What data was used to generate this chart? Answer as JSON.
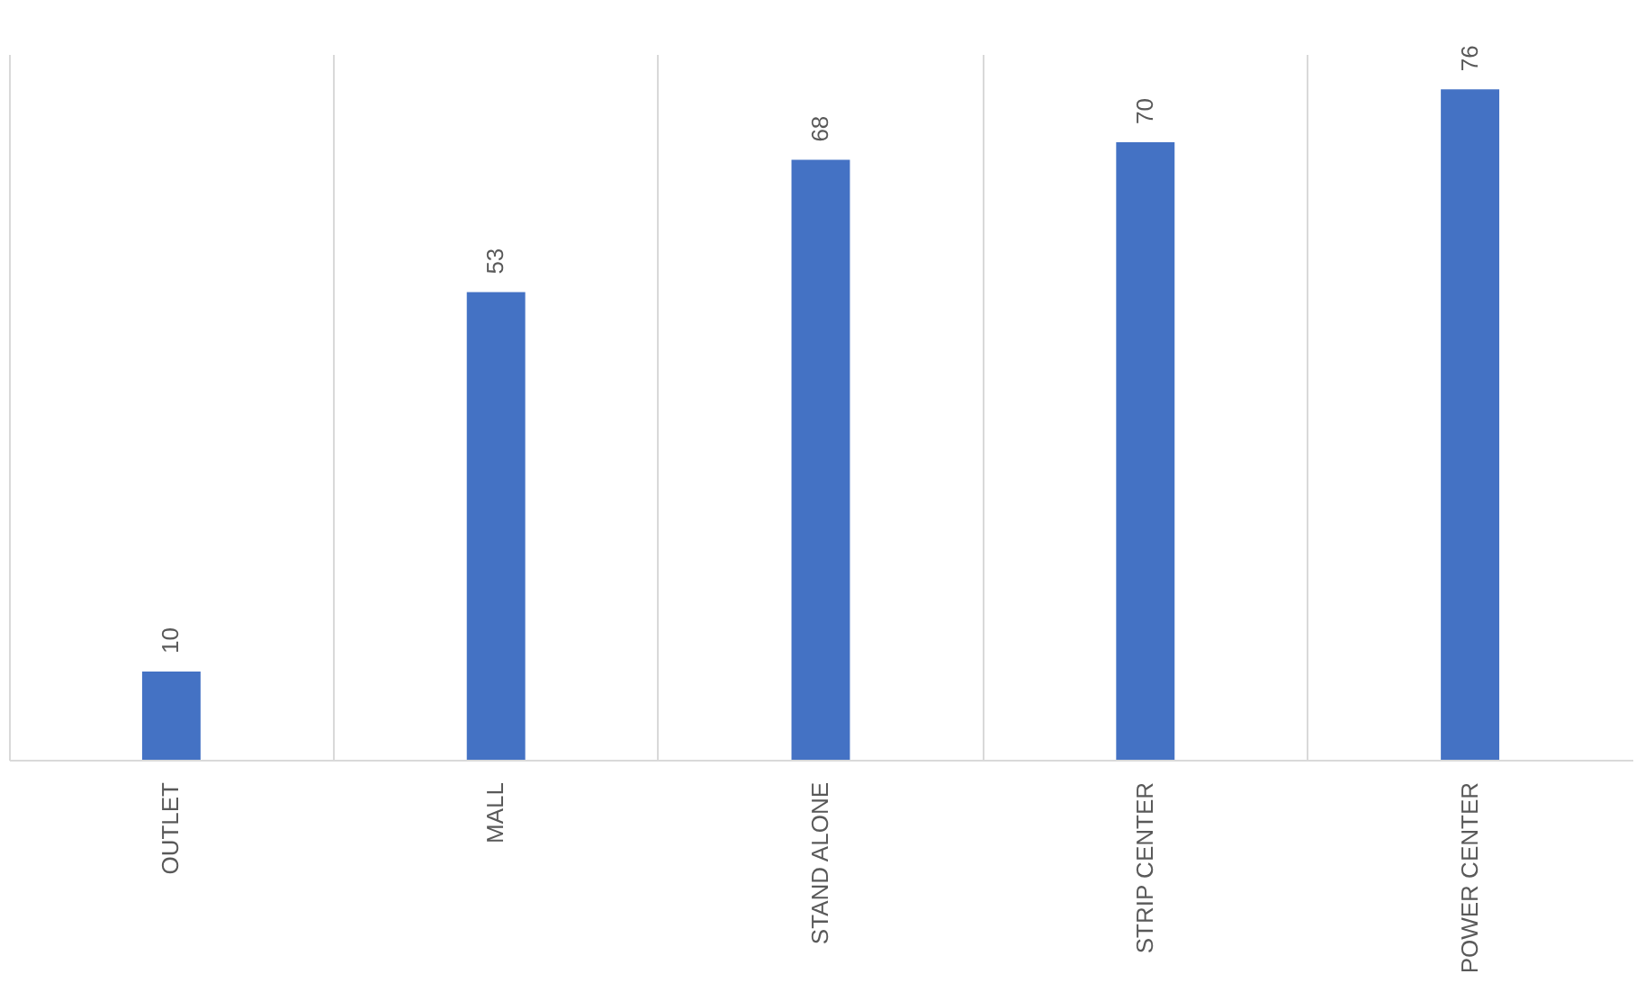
{
  "chart_data": {
    "type": "bar",
    "categories": [
      "OUTLET",
      "MALL",
      "STAND ALONE",
      "STRIP CENTER",
      "POWER CENTER"
    ],
    "values": [
      10,
      53,
      68,
      70,
      76
    ],
    "color": "#4472c4",
    "data_labels": true,
    "grid": "x",
    "tick_labels": "x"
  }
}
